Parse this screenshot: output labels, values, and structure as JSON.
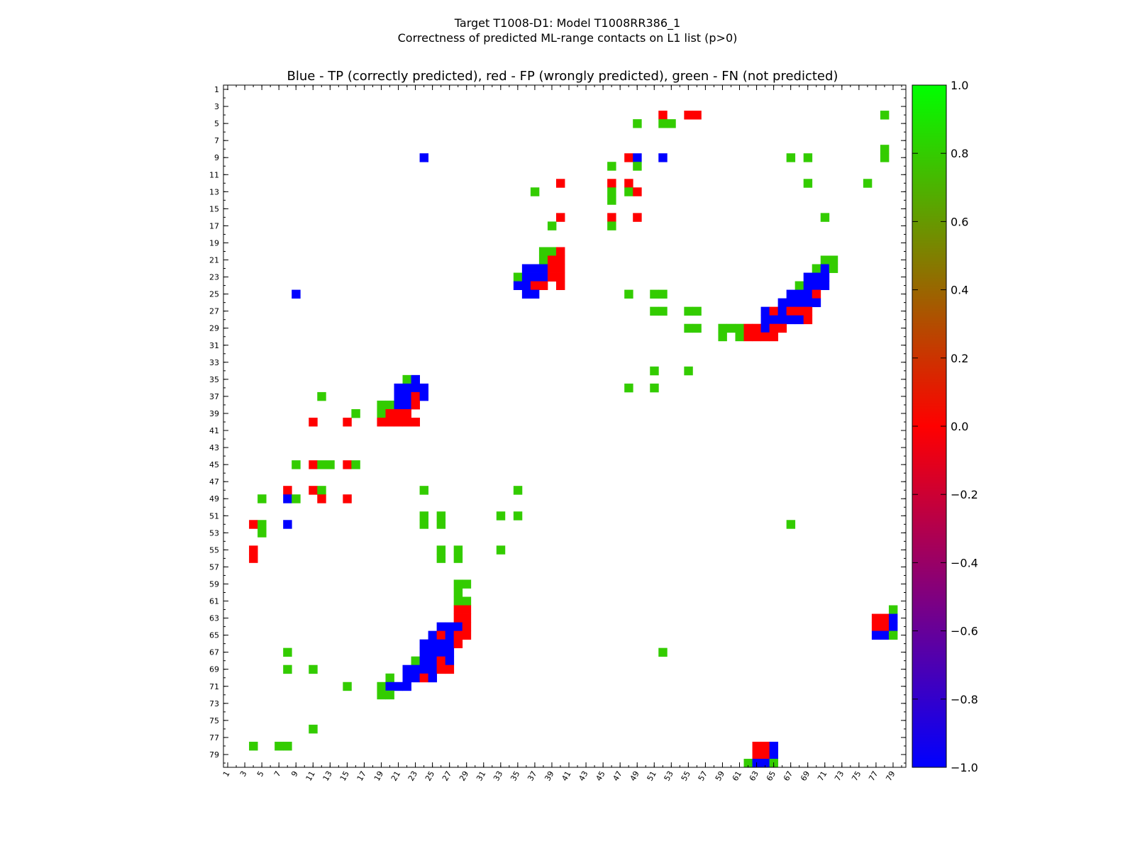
{
  "chart_data": {
    "type": "heatmap",
    "suptitle": [
      "Target T1008-D1: Model T1008RR386_1",
      "Correctness of predicted ML-range contacts on L1 list (p>0)"
    ],
    "title": "Blue - TP (correctly predicted), red - FP (wrongly predicted), green - FN (not predicted)",
    "n_residues": 80,
    "axis_ticks": [
      1,
      3,
      5,
      7,
      9,
      11,
      13,
      15,
      17,
      19,
      21,
      23,
      25,
      27,
      29,
      31,
      33,
      35,
      37,
      39,
      41,
      43,
      45,
      47,
      49,
      51,
      53,
      55,
      57,
      59,
      61,
      63,
      65,
      67,
      69,
      71,
      73,
      75,
      77,
      79
    ],
    "colorbar": {
      "range": [
        -1.0,
        1.0
      ],
      "ticks": [
        -1.0,
        -0.8,
        -0.6,
        -0.4,
        -0.2,
        0.0,
        0.2,
        0.4,
        0.6,
        0.8,
        1.0
      ],
      "tick_labels": [
        "−1.0",
        "−0.8",
        "−0.6",
        "−0.4",
        "−0.2",
        "0.0",
        "0.2",
        "0.4",
        "0.6",
        "0.8",
        "1.0"
      ]
    },
    "colors": {
      "tp": "#0000ff",
      "fp": "#ff0000",
      "fn": "#33cc00"
    },
    "upper_cells": [
      [
        4,
        52,
        "fp"
      ],
      [
        4,
        55,
        "fp"
      ],
      [
        4,
        56,
        "fp"
      ],
      [
        4,
        78,
        "fn"
      ],
      [
        5,
        49,
        "fn"
      ],
      [
        5,
        52,
        "fn"
      ],
      [
        5,
        53,
        "fn"
      ],
      [
        8,
        78,
        "fn"
      ],
      [
        9,
        24,
        "tp"
      ],
      [
        9,
        48,
        "fp"
      ],
      [
        9,
        49,
        "tp"
      ],
      [
        9,
        52,
        "tp"
      ],
      [
        9,
        67,
        "fn"
      ],
      [
        9,
        69,
        "fn"
      ],
      [
        9,
        78,
        "fn"
      ],
      [
        10,
        46,
        "fn"
      ],
      [
        10,
        49,
        "fn"
      ],
      [
        12,
        40,
        "fp"
      ],
      [
        12,
        46,
        "fp"
      ],
      [
        12,
        48,
        "fp"
      ],
      [
        12,
        69,
        "fn"
      ],
      [
        12,
        76,
        "fn"
      ],
      [
        13,
        37,
        "fn"
      ],
      [
        13,
        46,
        "fn"
      ],
      [
        13,
        48,
        "fn"
      ],
      [
        13,
        49,
        "fp"
      ],
      [
        14,
        46,
        "fn"
      ],
      [
        16,
        40,
        "fp"
      ],
      [
        16,
        46,
        "fp"
      ],
      [
        16,
        49,
        "fp"
      ],
      [
        16,
        71,
        "fn"
      ],
      [
        17,
        39,
        "fn"
      ],
      [
        17,
        46,
        "fn"
      ],
      [
        20,
        38,
        "fn"
      ],
      [
        20,
        39,
        "fn"
      ],
      [
        20,
        40,
        "fp"
      ],
      [
        21,
        38,
        "fn"
      ],
      [
        21,
        39,
        "fp"
      ],
      [
        21,
        40,
        "fp"
      ],
      [
        21,
        71,
        "fn"
      ],
      [
        21,
        72,
        "fn"
      ],
      [
        22,
        36,
        "tp"
      ],
      [
        22,
        37,
        "tp"
      ],
      [
        22,
        38,
        "tp"
      ],
      [
        22,
        39,
        "fp"
      ],
      [
        22,
        40,
        "fp"
      ],
      [
        22,
        70,
        "fn"
      ],
      [
        22,
        71,
        "tp"
      ],
      [
        22,
        72,
        "fn"
      ],
      [
        23,
        35,
        "fn"
      ],
      [
        23,
        36,
        "tp"
      ],
      [
        23,
        37,
        "tp"
      ],
      [
        23,
        38,
        "tp"
      ],
      [
        23,
        39,
        "fp"
      ],
      [
        23,
        40,
        "fp"
      ],
      [
        23,
        69,
        "tp"
      ],
      [
        23,
        70,
        "tp"
      ],
      [
        23,
        71,
        "tp"
      ],
      [
        24,
        35,
        "tp"
      ],
      [
        24,
        36,
        "tp"
      ],
      [
        24,
        37,
        "fp"
      ],
      [
        24,
        38,
        "fp"
      ],
      [
        24,
        40,
        "fp"
      ],
      [
        24,
        68,
        "fn"
      ],
      [
        24,
        69,
        "tp"
      ],
      [
        24,
        70,
        "tp"
      ],
      [
        24,
        71,
        "tp"
      ],
      [
        25,
        9,
        "tp"
      ],
      [
        25,
        36,
        "tp"
      ],
      [
        25,
        37,
        "tp"
      ],
      [
        25,
        48,
        "fn"
      ],
      [
        25,
        51,
        "fn"
      ],
      [
        25,
        52,
        "fn"
      ],
      [
        25,
        67,
        "tp"
      ],
      [
        25,
        68,
        "tp"
      ],
      [
        25,
        69,
        "tp"
      ],
      [
        25,
        70,
        "fp"
      ],
      [
        26,
        66,
        "tp"
      ],
      [
        26,
        67,
        "tp"
      ],
      [
        26,
        68,
        "tp"
      ],
      [
        26,
        69,
        "tp"
      ],
      [
        26,
        70,
        "tp"
      ],
      [
        27,
        51,
        "fn"
      ],
      [
        27,
        52,
        "fn"
      ],
      [
        27,
        55,
        "fn"
      ],
      [
        27,
        56,
        "fn"
      ],
      [
        27,
        64,
        "tp"
      ],
      [
        27,
        65,
        "fp"
      ],
      [
        27,
        66,
        "tp"
      ],
      [
        27,
        67,
        "fp"
      ],
      [
        27,
        68,
        "fp"
      ],
      [
        27,
        69,
        "fp"
      ],
      [
        28,
        64,
        "tp"
      ],
      [
        28,
        65,
        "tp"
      ],
      [
        28,
        66,
        "tp"
      ],
      [
        28,
        67,
        "tp"
      ],
      [
        28,
        68,
        "tp"
      ],
      [
        28,
        69,
        "fp"
      ],
      [
        29,
        55,
        "fn"
      ],
      [
        29,
        56,
        "fn"
      ],
      [
        29,
        59,
        "fn"
      ],
      [
        29,
        60,
        "fn"
      ],
      [
        29,
        61,
        "fn"
      ],
      [
        29,
        62,
        "fp"
      ],
      [
        29,
        63,
        "fp"
      ],
      [
        29,
        64,
        "tp"
      ],
      [
        29,
        65,
        "fp"
      ],
      [
        29,
        66,
        "fp"
      ],
      [
        30,
        59,
        "fn"
      ],
      [
        30,
        61,
        "fn"
      ],
      [
        30,
        62,
        "fp"
      ],
      [
        30,
        63,
        "fp"
      ],
      [
        30,
        64,
        "fp"
      ],
      [
        30,
        65,
        "fp"
      ],
      [
        34,
        51,
        "fn"
      ],
      [
        34,
        55,
        "fn"
      ],
      [
        36,
        48,
        "fn"
      ],
      [
        36,
        51,
        "fn"
      ]
    ],
    "lower_cells": [
      [
        35,
        22,
        "fn"
      ],
      [
        35,
        23,
        "tp"
      ],
      [
        36,
        21,
        "tp"
      ],
      [
        36,
        22,
        "tp"
      ],
      [
        36,
        23,
        "tp"
      ],
      [
        36,
        24,
        "tp"
      ],
      [
        37,
        12,
        "fn"
      ],
      [
        37,
        21,
        "tp"
      ],
      [
        37,
        22,
        "tp"
      ],
      [
        37,
        23,
        "fp"
      ],
      [
        37,
        24,
        "tp"
      ],
      [
        38,
        19,
        "fn"
      ],
      [
        38,
        20,
        "fn"
      ],
      [
        38,
        21,
        "tp"
      ],
      [
        38,
        22,
        "tp"
      ],
      [
        38,
        23,
        "fp"
      ],
      [
        39,
        16,
        "fn"
      ],
      [
        39,
        19,
        "fn"
      ],
      [
        39,
        20,
        "fp"
      ],
      [
        39,
        21,
        "fp"
      ],
      [
        39,
        22,
        "fp"
      ],
      [
        40,
        11,
        "fp"
      ],
      [
        40,
        15,
        "fp"
      ],
      [
        40,
        19,
        "fp"
      ],
      [
        40,
        20,
        "fp"
      ],
      [
        40,
        21,
        "fp"
      ],
      [
        40,
        22,
        "fp"
      ],
      [
        40,
        23,
        "fp"
      ],
      [
        45,
        9,
        "fn"
      ],
      [
        45,
        11,
        "fp"
      ],
      [
        45,
        12,
        "fn"
      ],
      [
        45,
        13,
        "fn"
      ],
      [
        45,
        15,
        "fp"
      ],
      [
        45,
        16,
        "fn"
      ],
      [
        48,
        8,
        "fp"
      ],
      [
        48,
        11,
        "fp"
      ],
      [
        48,
        12,
        "fn"
      ],
      [
        48,
        24,
        "fn"
      ],
      [
        48,
        35,
        "fn"
      ],
      [
        49,
        5,
        "fn"
      ],
      [
        49,
        8,
        "tp"
      ],
      [
        49,
        9,
        "fn"
      ],
      [
        49,
        12,
        "fp"
      ],
      [
        49,
        15,
        "fp"
      ],
      [
        51,
        24,
        "fn"
      ],
      [
        51,
        26,
        "fn"
      ],
      [
        51,
        33,
        "fn"
      ],
      [
        51,
        35,
        "fn"
      ],
      [
        52,
        4,
        "fp"
      ],
      [
        52,
        5,
        "fn"
      ],
      [
        52,
        8,
        "tp"
      ],
      [
        52,
        24,
        "fn"
      ],
      [
        52,
        26,
        "fn"
      ],
      [
        52,
        67,
        "fn"
      ],
      [
        53,
        5,
        "fn"
      ],
      [
        55,
        4,
        "fp"
      ],
      [
        55,
        26,
        "fn"
      ],
      [
        55,
        28,
        "fn"
      ],
      [
        55,
        33,
        "fn"
      ],
      [
        56,
        4,
        "fp"
      ],
      [
        56,
        26,
        "fn"
      ],
      [
        56,
        28,
        "fn"
      ],
      [
        59,
        28,
        "fn"
      ],
      [
        59,
        29,
        "fn"
      ],
      [
        60,
        28,
        "fn"
      ],
      [
        61,
        28,
        "fn"
      ],
      [
        61,
        29,
        "fn"
      ],
      [
        62,
        28,
        "fp"
      ],
      [
        62,
        29,
        "fp"
      ],
      [
        62,
        79,
        "fn"
      ],
      [
        63,
        28,
        "fp"
      ],
      [
        63,
        29,
        "fp"
      ],
      [
        63,
        77,
        "fp"
      ],
      [
        63,
        78,
        "fp"
      ],
      [
        63,
        79,
        "tp"
      ],
      [
        64,
        26,
        "tp"
      ],
      [
        64,
        27,
        "tp"
      ],
      [
        64,
        28,
        "tp"
      ],
      [
        64,
        29,
        "fp"
      ],
      [
        64,
        77,
        "fp"
      ],
      [
        64,
        78,
        "fp"
      ],
      [
        64,
        79,
        "tp"
      ],
      [
        65,
        25,
        "tp"
      ],
      [
        65,
        26,
        "fp"
      ],
      [
        65,
        27,
        "tp"
      ],
      [
        65,
        28,
        "fp"
      ],
      [
        65,
        29,
        "fp"
      ],
      [
        65,
        77,
        "tp"
      ],
      [
        65,
        78,
        "tp"
      ],
      [
        65,
        79,
        "fn"
      ],
      [
        66,
        24,
        "tp"
      ],
      [
        66,
        25,
        "tp"
      ],
      [
        66,
        26,
        "tp"
      ],
      [
        66,
        27,
        "tp"
      ],
      [
        66,
        28,
        "fp"
      ],
      [
        67,
        8,
        "fn"
      ],
      [
        67,
        24,
        "tp"
      ],
      [
        67,
        25,
        "tp"
      ],
      [
        67,
        26,
        "tp"
      ],
      [
        67,
        27,
        "tp"
      ],
      [
        67,
        52,
        "fn"
      ],
      [
        68,
        23,
        "fn"
      ],
      [
        68,
        24,
        "tp"
      ],
      [
        68,
        25,
        "tp"
      ],
      [
        68,
        26,
        "fp"
      ],
      [
        68,
        27,
        "tp"
      ],
      [
        69,
        8,
        "fn"
      ],
      [
        69,
        11,
        "fn"
      ],
      [
        69,
        22,
        "tp"
      ],
      [
        69,
        23,
        "tp"
      ],
      [
        69,
        24,
        "tp"
      ],
      [
        69,
        25,
        "tp"
      ],
      [
        69,
        26,
        "fp"
      ],
      [
        69,
        27,
        "fp"
      ],
      [
        70,
        20,
        "fn"
      ],
      [
        70,
        22,
        "tp"
      ],
      [
        70,
        23,
        "tp"
      ],
      [
        70,
        24,
        "fp"
      ],
      [
        70,
        25,
        "tp"
      ],
      [
        71,
        15,
        "fn"
      ],
      [
        71,
        19,
        "fn"
      ],
      [
        71,
        20,
        "tp"
      ],
      [
        71,
        21,
        "tp"
      ],
      [
        71,
        22,
        "tp"
      ],
      [
        72,
        19,
        "fn"
      ],
      [
        72,
        20,
        "fn"
      ],
      [
        76,
        11,
        "fn"
      ],
      [
        78,
        4,
        "fn"
      ],
      [
        78,
        7,
        "fn"
      ],
      [
        78,
        8,
        "fn"
      ],
      [
        78,
        63,
        "fp"
      ],
      [
        78,
        64,
        "fp"
      ],
      [
        78,
        65,
        "tp"
      ],
      [
        79,
        63,
        "fp"
      ],
      [
        79,
        64,
        "fp"
      ],
      [
        79,
        65,
        "tp"
      ],
      [
        80,
        62,
        "fn"
      ],
      [
        80,
        63,
        "tp"
      ],
      [
        80,
        64,
        "tp"
      ],
      [
        80,
        65,
        "fn"
      ]
    ]
  }
}
